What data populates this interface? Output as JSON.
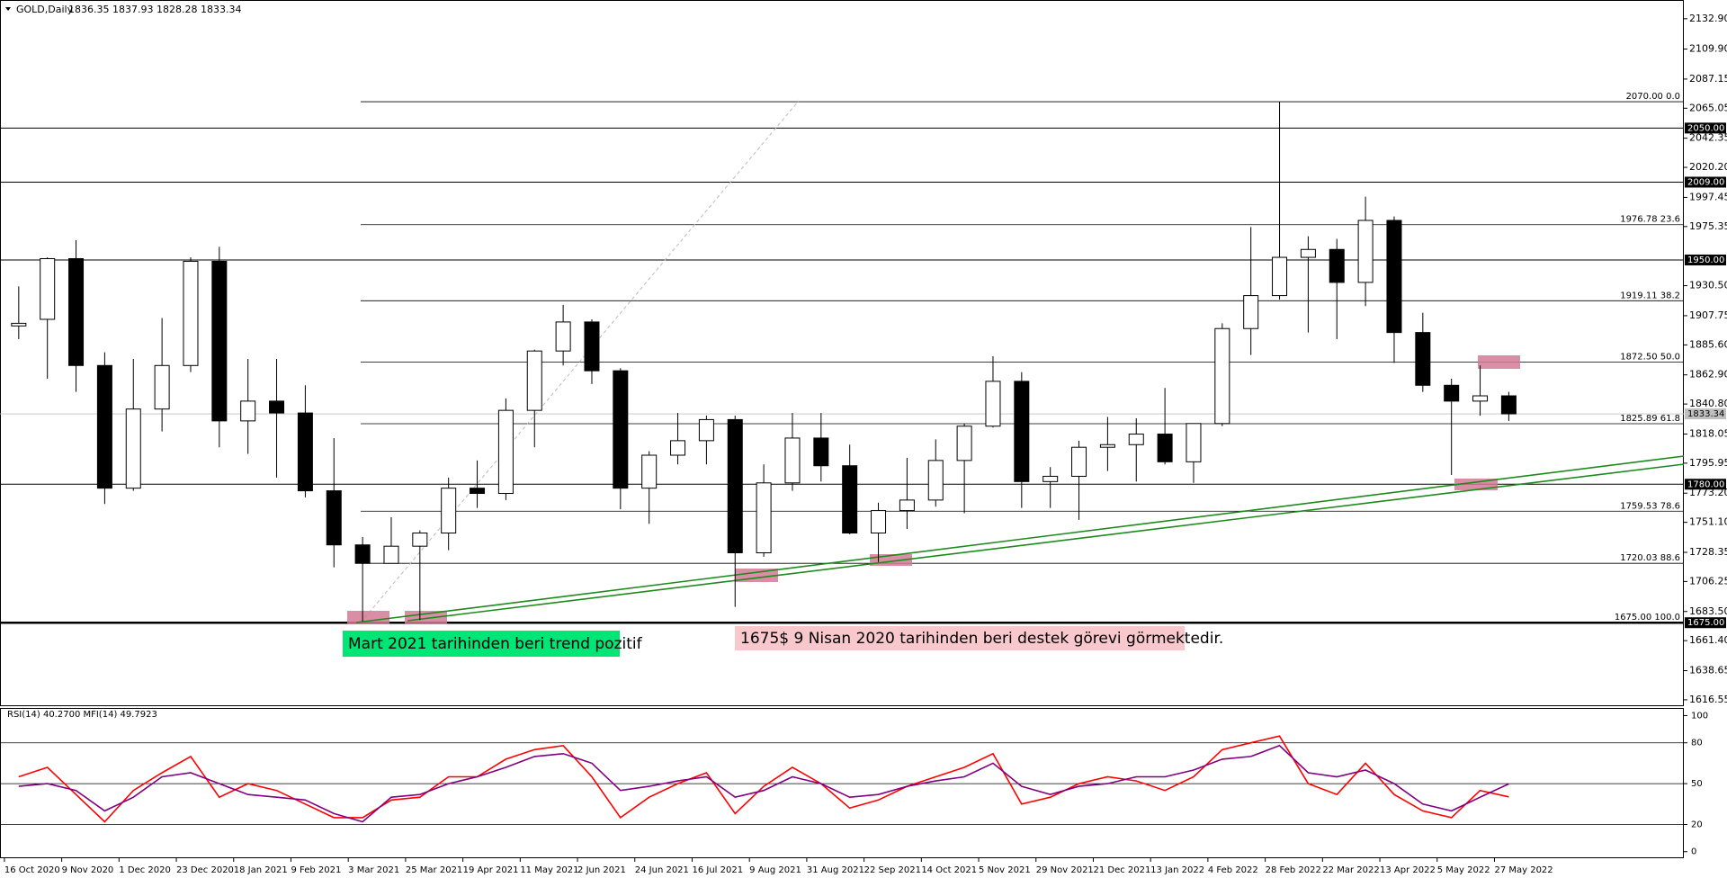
{
  "chart_data": [
    {
      "type": "candlestick",
      "title": "GOLD,Daily",
      "subtitle": "1836.35 1837.93 1828.28 1833.34",
      "categories": [
        "16 Oct 2020",
        null,
        "9 Nov 2020",
        null,
        "1 Dec 2020",
        null,
        "23 Dec 2020",
        null,
        "18 Jan 2021",
        null,
        "9 Feb 2021",
        null,
        "3 Mar 2021",
        null,
        "25 Mar 2021",
        null,
        "19 Apr 2021",
        null,
        "11 May 2021",
        null,
        "2 Jun 2021",
        null,
        "24 Jun 2021",
        null,
        "16 Jul 2021",
        null,
        "9 Aug 2021",
        null,
        "31 Aug 2021",
        null,
        "22 Sep 2021",
        null,
        "14 Oct 2021",
        null,
        "5 Nov 2021",
        null,
        "29 Nov 2021",
        null,
        "21 Dec 2021",
        null,
        "13 Jan 2022",
        null,
        "4 Feb 2022",
        null,
        "28 Feb 2022",
        null,
        "22 Mar 2022",
        null,
        "13 Apr 2022",
        null,
        "5 May 2022",
        null,
        "27 May 2022"
      ],
      "open": [
        1900,
        1905,
        1951,
        1870,
        1777,
        1837,
        1870,
        1949,
        1828,
        1843,
        1834,
        1775,
        1734,
        1720,
        1733,
        1743,
        1777,
        1773,
        1836,
        1881,
        1903,
        1866,
        1777,
        1802,
        1813,
        1829,
        1728,
        1781,
        1815,
        1794,
        1743,
        1760,
        1768,
        1798,
        1824,
        1858,
        1782,
        1786,
        1808,
        1810,
        1818,
        1797,
        1826,
        1898,
        1923,
        1952,
        1958,
        1933,
        1980,
        1895,
        1855,
        1843,
        1847
      ],
      "high": [
        1930,
        1952,
        1965,
        1880,
        1875,
        1906,
        1952,
        1960,
        1875,
        1875,
        1855,
        1815,
        1740,
        1755,
        1745,
        1785,
        1798,
        1845,
        1882,
        1916,
        1905,
        1868,
        1805,
        1834,
        1832,
        1832,
        1795,
        1834,
        1834,
        1810,
        1766,
        1800,
        1814,
        1826,
        1877,
        1865,
        1793,
        1813,
        1831,
        1830,
        1853,
        1825,
        1902,
        1975,
        2070,
        1968,
        1966,
        1998,
        1983,
        1910,
        1860,
        1870,
        1850
      ],
      "low": [
        1890,
        1860,
        1850,
        1765,
        1775,
        1820,
        1865,
        1808,
        1803,
        1785,
        1770,
        1717,
        1676,
        1720,
        1677,
        1730,
        1762,
        1768,
        1808,
        1870,
        1856,
        1761,
        1750,
        1795,
        1795,
        1687,
        1725,
        1775,
        1782,
        1742,
        1721,
        1746,
        1763,
        1758,
        1823,
        1762,
        1762,
        1753,
        1790,
        1782,
        1795,
        1781,
        1824,
        1878,
        1920,
        1895,
        1890,
        1915,
        1872,
        1850,
        1787,
        1832,
        1828
      ],
      "close": [
        1902,
        1951,
        1870,
        1777,
        1837,
        1870,
        1949,
        1828,
        1843,
        1834,
        1775,
        1734,
        1720,
        1733,
        1743,
        1777,
        1773,
        1836,
        1881,
        1903,
        1866,
        1777,
        1802,
        1813,
        1829,
        1728,
        1781,
        1815,
        1794,
        1743,
        1760,
        1768,
        1798,
        1824,
        1858,
        1782,
        1786,
        1808,
        1810,
        1818,
        1797,
        1826,
        1898,
        1923,
        1952,
        1958,
        1933,
        1980,
        1895,
        1855,
        1843,
        1847,
        1833.34
      ],
      "up_color": "#ffffff",
      "down_color": "#000000",
      "ylim": [
        1612.4,
        2147.1
      ],
      "yticks": [
        {
          "value": 2132.9,
          "label": "2132.90"
        },
        {
          "value": 2109.9,
          "label": "2109.90"
        },
        2087.15,
        2065.05,
        2042.35,
        {
          "value": 2020.2,
          "label": "2020.20"
        },
        1997.45,
        1975.35,
        {
          "value": 1930.5,
          "label": "1930.50"
        },
        1907.75,
        {
          "value": 1885.6,
          "label": "1885.60"
        },
        {
          "value": 1862.9,
          "label": "1862.90"
        },
        {
          "value": 1840.8,
          "label": "1840.80"
        },
        1818.05,
        1795.95,
        {
          "value": 1773.2,
          "label": "1773.20"
        },
        {
          "value": 1751.1,
          "label": "1751.10"
        },
        1728.35,
        1706.25,
        {
          "value": 1683.5,
          "label": "1683.50"
        },
        {
          "value": 1661.4,
          "label": "1661.40"
        },
        1638.65,
        1616.55
      ],
      "levels": [
        {
          "value": 2050,
          "label": "2050.00"
        },
        {
          "value": 2009,
          "label": "2009.00"
        },
        {
          "value": 1950,
          "label": "1950.00"
        },
        {
          "value": 1780,
          "label": "1780.00"
        },
        {
          "value": 1675,
          "label": "1675.00"
        }
      ],
      "fibonacci": [
        {
          "value": 2070,
          "label": "2070.00 0.0"
        },
        {
          "value": 1976.78,
          "label": "1976.78 23.6"
        },
        {
          "value": 1919.11,
          "label": "1919.11 38.2"
        },
        {
          "value": 1872.5,
          "label": "1872.50 50.0"
        },
        {
          "value": 1825.89,
          "label": "1825.89 61.8"
        },
        {
          "value": 1759.53,
          "label": "1759.53 78.6"
        },
        {
          "value": 1720.03,
          "label": "1720.03 88.6"
        },
        {
          "value": 1675,
          "label": "1675.00 100.0"
        }
      ],
      "last_price": {
        "value": 1833.34,
        "label": "1833.34"
      },
      "annotations": [
        "Mart 2021 tarihinden beri trend pozitif",
        "1675$  9 Nisan 2020 tarihinden beri destek görevi görmektedir."
      ]
    },
    {
      "type": "line",
      "title": "RSI(14) 40.2700  MFI(14) 49.7923",
      "series": [
        {
          "color": "#ff0000",
          "values": [
            55,
            62,
            42,
            22,
            45,
            58,
            70,
            40,
            50,
            45,
            35,
            25,
            25,
            38,
            40,
            55,
            55,
            68,
            75,
            78,
            55,
            25,
            40,
            50,
            58,
            28,
            48,
            62,
            50,
            32,
            38,
            48,
            55,
            62,
            72,
            35,
            40,
            50,
            55,
            52,
            45,
            55,
            75,
            80,
            85,
            50,
            42,
            65,
            42,
            30,
            25,
            45,
            40.27
          ]
        },
        {
          "color": "#800080",
          "values": [
            48,
            50,
            45,
            30,
            40,
            55,
            58,
            50,
            42,
            40,
            38,
            28,
            22,
            40,
            42,
            50,
            55,
            62,
            70,
            72,
            65,
            45,
            48,
            52,
            55,
            40,
            45,
            55,
            50,
            40,
            42,
            48,
            52,
            55,
            65,
            48,
            42,
            48,
            50,
            55,
            55,
            60,
            68,
            70,
            78,
            58,
            55,
            60,
            50,
            35,
            30,
            40,
            49.7923
          ]
        }
      ],
      "ylim": [
        -4.8,
        105.6
      ],
      "yticks": [
        0,
        20,
        50,
        80,
        100
      ],
      "levels": [
        20,
        50,
        80
      ]
    }
  ]
}
